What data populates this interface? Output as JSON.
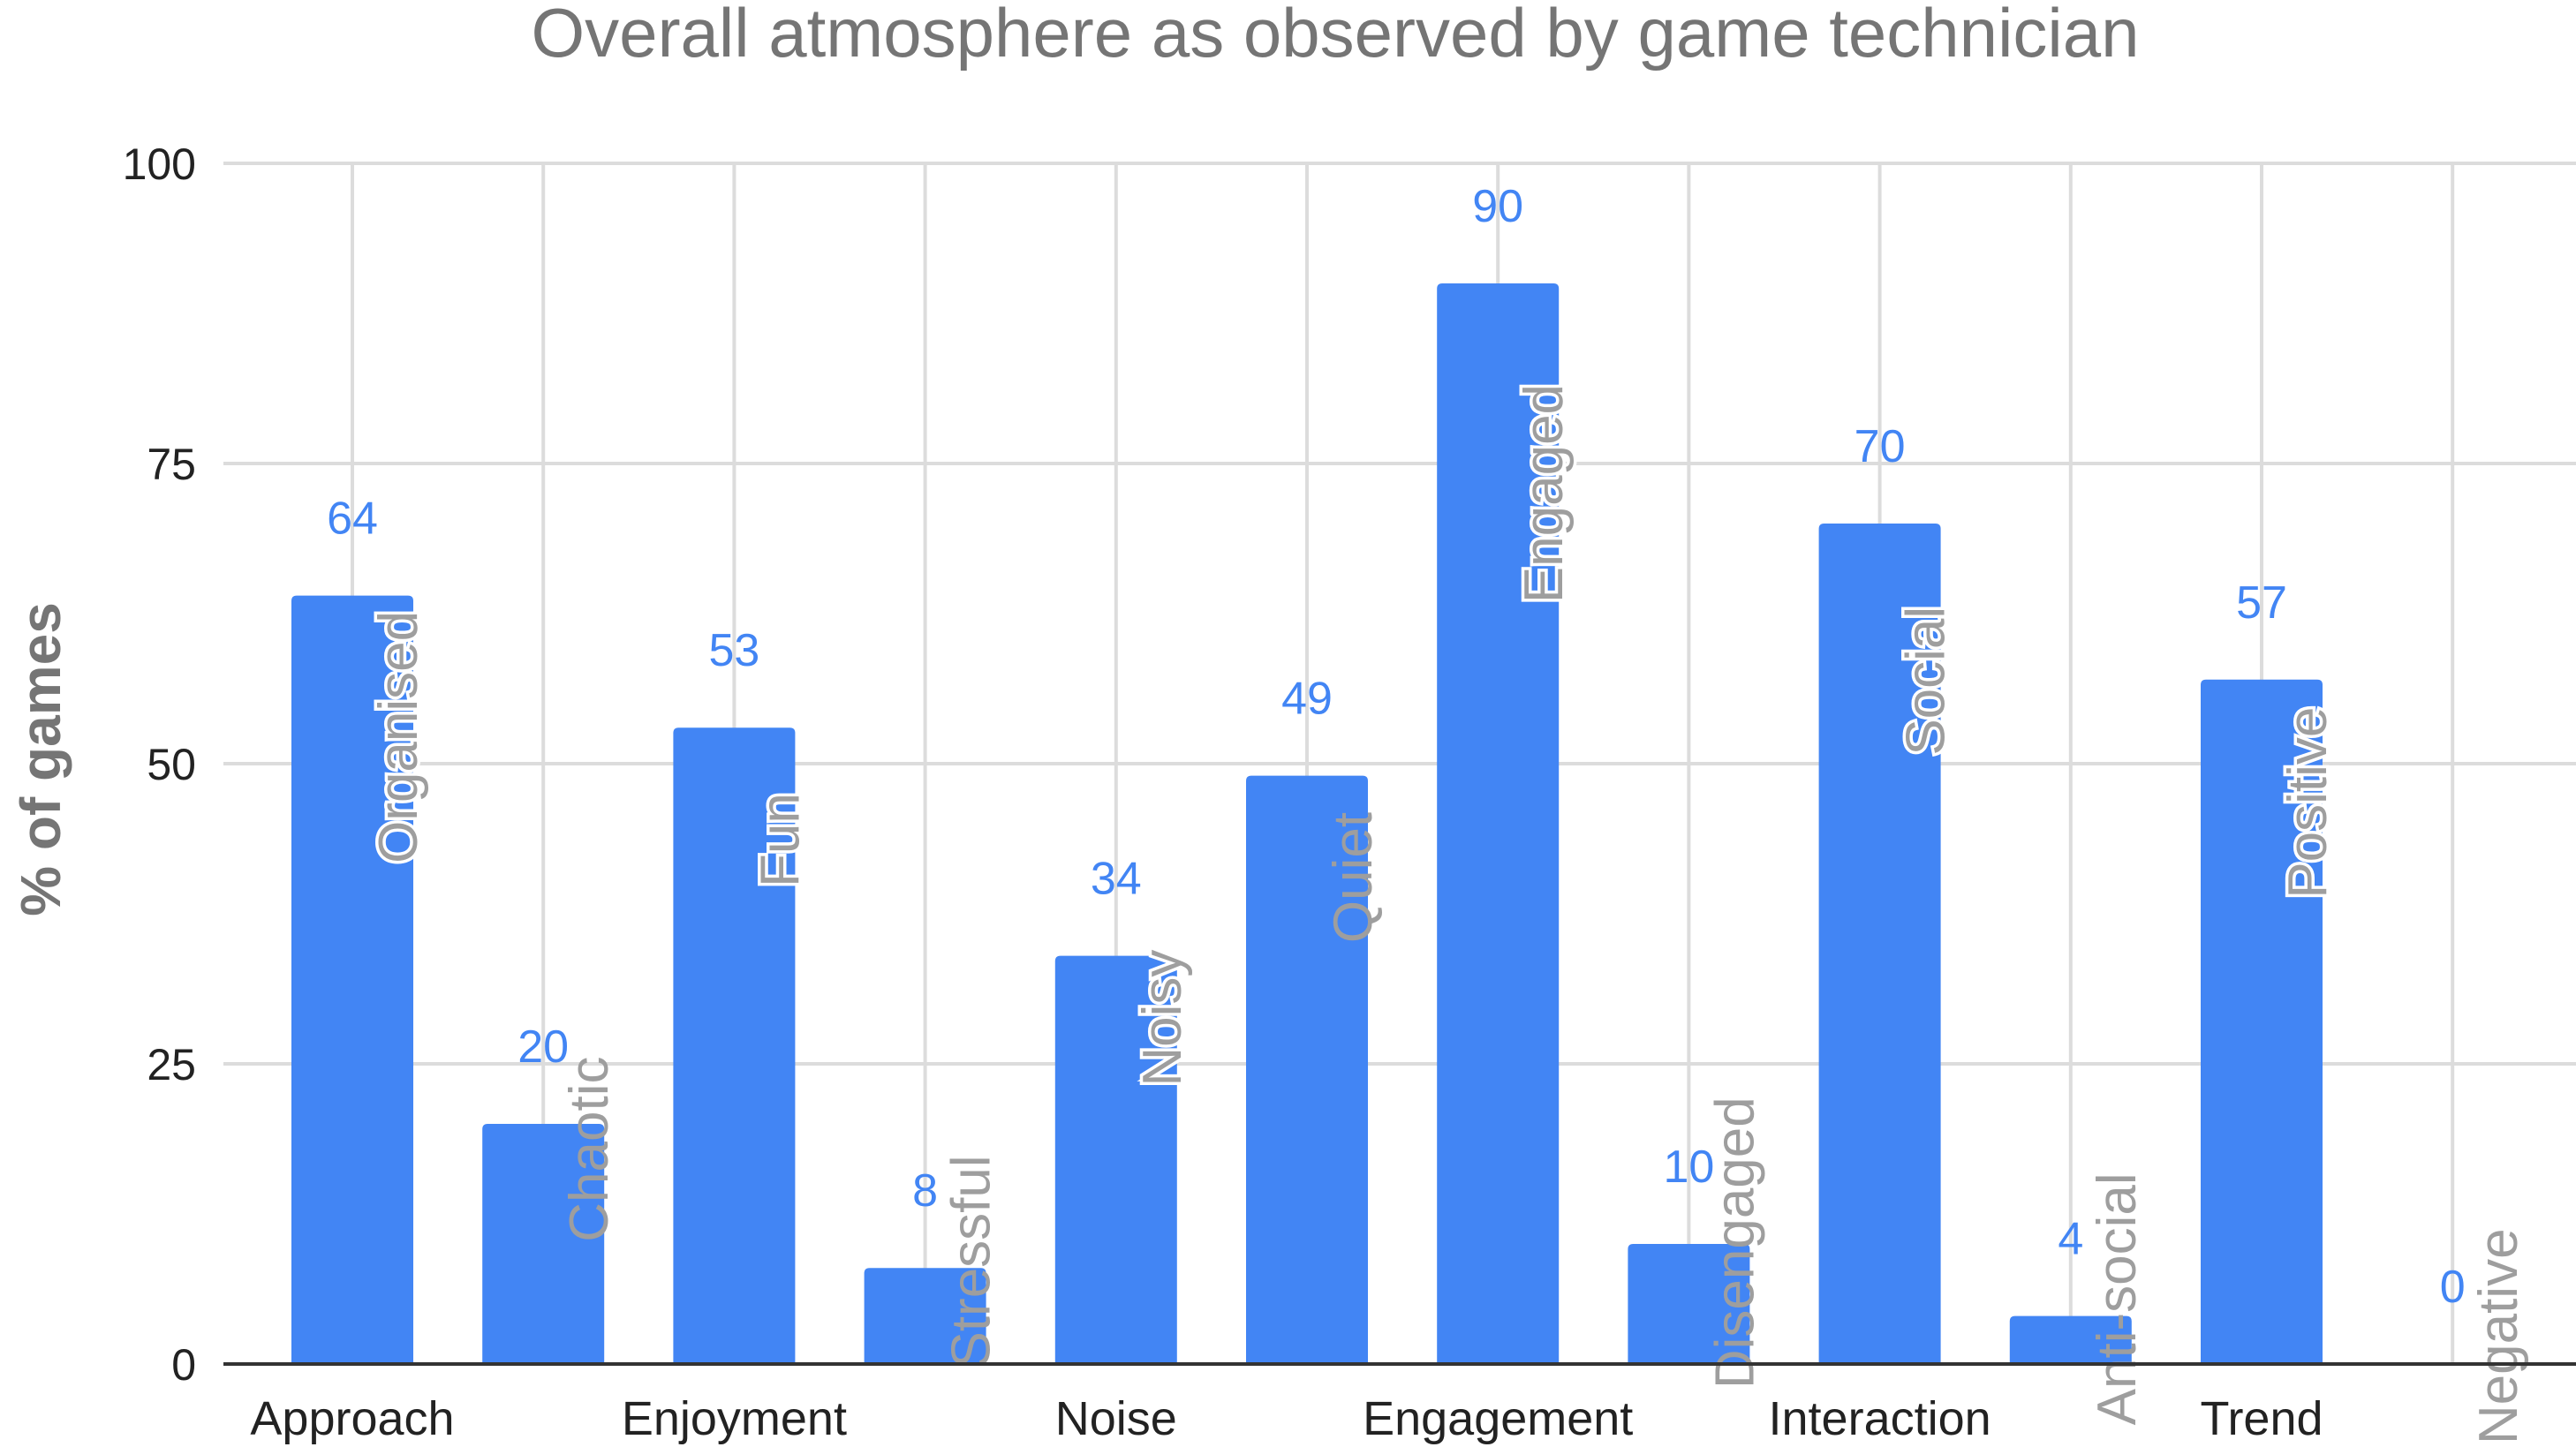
{
  "chart_data": {
    "type": "bar",
    "title": "Overall atmosphere as observed by game technician",
    "xlabel": "",
    "ylabel": "% of games",
    "ylim": [
      0,
      100
    ],
    "yticks": [
      0,
      25,
      50,
      75,
      100
    ],
    "grid": true,
    "bar_color": "#4285f4",
    "value_label_color": "#4285f4",
    "categories": [
      "Organised",
      "Chaotic",
      "Fun",
      "Stressful",
      "Noisy",
      "Quiet",
      "Engaged",
      "Disengaged",
      "Social",
      "Anti-social",
      "Positive",
      "Negative"
    ],
    "values": [
      64,
      20,
      53,
      8,
      34,
      49,
      90,
      10,
      70,
      4,
      57,
      0
    ],
    "groups": [
      "Approach",
      "Enjoyment",
      "Noise",
      "Engagement",
      "Interaction",
      "Trend"
    ]
  }
}
